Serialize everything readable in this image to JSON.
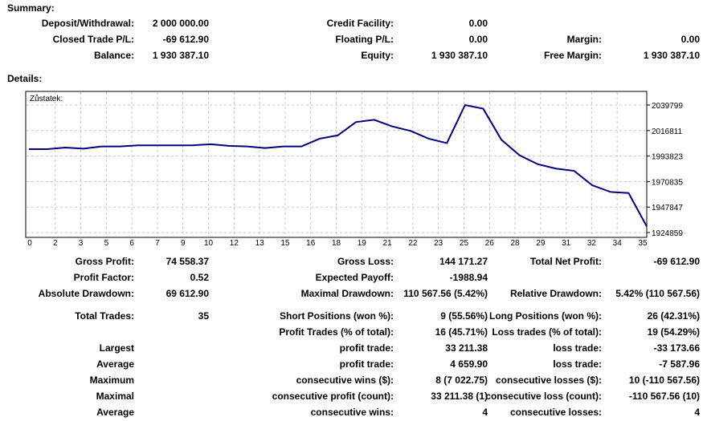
{
  "summary": {
    "heading": "Summary:",
    "deposit_label": "Deposit/Withdrawal:",
    "deposit_value": "2 000 000.00",
    "credit_label": "Credit Facility:",
    "credit_value": "0.00",
    "closed_pl_label": "Closed Trade P/L:",
    "closed_pl_value": "-69 612.90",
    "floating_pl_label": "Floating P/L:",
    "floating_pl_value": "0.00",
    "margin_label": "Margin:",
    "margin_value": "0.00",
    "balance_label": "Balance:",
    "balance_value": "1 930 387.10",
    "equity_label": "Equity:",
    "equity_value": "1 930 387.10",
    "free_margin_label": "Free Margin:",
    "free_margin_value": "1 930 387.10"
  },
  "details": {
    "heading": "Details:"
  },
  "chart_data": {
    "type": "line",
    "inner_label": "Zůstatek:",
    "y_ticks": [
      2039799,
      2016811,
      1993823,
      1970835,
      1947847,
      1924859
    ],
    "ylim": [
      1924859,
      2039799
    ],
    "x_ticks": [
      0,
      2,
      3,
      5,
      6,
      7,
      9,
      10,
      12,
      13,
      15,
      16,
      18,
      19,
      21,
      22,
      23,
      25,
      26,
      28,
      29,
      31,
      32,
      34,
      35
    ],
    "xlim": [
      0,
      35
    ],
    "line_color": "#000080",
    "series": [
      {
        "points": [
          [
            0,
            2000000
          ],
          [
            1,
            2000000
          ],
          [
            2,
            2001500
          ],
          [
            3,
            2000500
          ],
          [
            4,
            2002500
          ],
          [
            5,
            2002500
          ],
          [
            6,
            2003500
          ],
          [
            7,
            2003500
          ],
          [
            8,
            2003500
          ],
          [
            9,
            2003500
          ],
          [
            10,
            2004500
          ],
          [
            11,
            2003000
          ],
          [
            12,
            2002500
          ],
          [
            13,
            2001000
          ],
          [
            14,
            2002500
          ],
          [
            15,
            2002500
          ],
          [
            16,
            2009500
          ],
          [
            17,
            2012500
          ],
          [
            18,
            2024500
          ],
          [
            19,
            2026500
          ],
          [
            20,
            2020500
          ],
          [
            21,
            2016500
          ],
          [
            22,
            2009500
          ],
          [
            23,
            2005500
          ],
          [
            24,
            2039799
          ],
          [
            25,
            2036500
          ],
          [
            26,
            2008500
          ],
          [
            27,
            1994500
          ],
          [
            28,
            1986500
          ],
          [
            29,
            1982500
          ],
          [
            30,
            1980500
          ],
          [
            31,
            1967500
          ],
          [
            32,
            1961500
          ],
          [
            33,
            1960500
          ],
          [
            34,
            1930387
          ]
        ]
      }
    ]
  },
  "stats": {
    "gross_profit_label": "Gross Profit:",
    "gross_profit_value": "74 558.37",
    "gross_loss_label": "Gross Loss:",
    "gross_loss_value": "144 171.27",
    "total_net_profit_label": "Total Net Profit:",
    "total_net_profit_value": "-69 612.90",
    "profit_factor_label": "Profit Factor:",
    "profit_factor_value": "0.52",
    "expected_payoff_label": "Expected Payoff:",
    "expected_payoff_value": "-1988.94",
    "absolute_drawdown_label": "Absolute Drawdown:",
    "absolute_drawdown_value": "69 612.90",
    "maximal_drawdown_label": "Maximal Drawdown:",
    "maximal_drawdown_value": "110 567.56 (5.42%)",
    "relative_drawdown_label": "Relative Drawdown:",
    "relative_drawdown_value": "5.42% (110 567.56)",
    "total_trades_label": "Total Trades:",
    "total_trades_value": "35",
    "short_positions_label": "Short Positions (won %):",
    "short_positions_value": "9 (55.56%)",
    "long_positions_label": "Long Positions (won %):",
    "long_positions_value": "26 (42.31%)",
    "profit_trades_label": "Profit Trades (% of total):",
    "profit_trades_value": "16 (45.71%)",
    "loss_trades_label": "Loss trades (% of total):",
    "loss_trades_value": "19 (54.29%)",
    "largest_label": "Largest",
    "largest_profit_label": "profit trade:",
    "largest_profit_value": "33 211.38",
    "largest_loss_label": "loss trade:",
    "largest_loss_value": "-33 173.66",
    "average_label": "Average",
    "average_profit_label": "profit trade:",
    "average_profit_value": "4 659.90",
    "average_loss_label": "loss trade:",
    "average_loss_value": "-7 587.96",
    "maximum_label": "Maximum",
    "max_cons_wins_label": "consecutive wins ($):",
    "max_cons_wins_value": "8 (7 022.75)",
    "max_cons_losses_label": "consecutive losses ($):",
    "max_cons_losses_value": "10 (-110 567.56)",
    "maximal_label": "Maximal",
    "maximal_cons_profit_label": "consecutive profit (count):",
    "maximal_cons_profit_value": "33 211.38 (1)",
    "maximal_cons_loss_label": "consecutive loss (count):",
    "maximal_cons_loss_value": "-110 567.56 (10)",
    "average2_label": "Average",
    "avg_cons_wins_label": "consecutive wins:",
    "avg_cons_wins_value": "4",
    "avg_cons_losses_label": "consecutive losses:",
    "avg_cons_losses_value": "4"
  }
}
